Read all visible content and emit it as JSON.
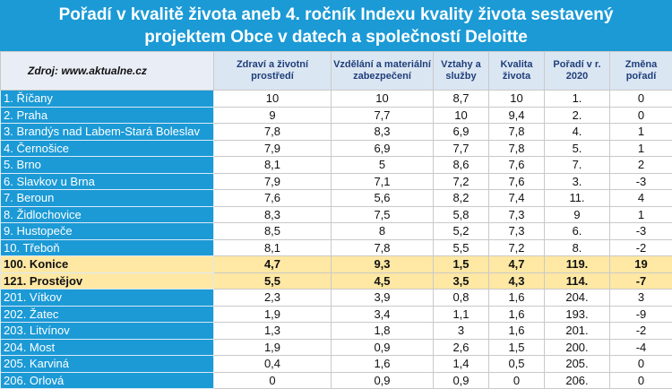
{
  "title": {
    "line1": "Pořadí v kvalitě života aneb 4. ročník Indexu kvality života sestavený",
    "line2": "projektem Obce v datech a společností Deloitte"
  },
  "source": "Zdroj: www.aktualne.cz",
  "columns": [
    "Zdraví a životní prostředí",
    "Vzdělání a materiální zabezpečení",
    "Vztahy a služby",
    "Kvalita života",
    "Pořadí v r. 2020",
    "Změna pořadí"
  ],
  "colors": {
    "header_bg": "#1b9ad6",
    "name_bg": "#1b9ad6",
    "highlight_bg": "#ffe8a3",
    "colheader_bg": "#dbe6f3"
  },
  "rows": [
    {
      "name": "1. Říčany",
      "v": [
        "10",
        "10",
        "8,7",
        "10",
        "1.",
        "0"
      ],
      "hl": false
    },
    {
      "name": "2. Praha",
      "v": [
        "9",
        "7,7",
        "10",
        "9,4",
        "2.",
        "0"
      ],
      "hl": false
    },
    {
      "name": "3. Brandýs nad Labem-Stará Boleslav",
      "v": [
        "7,8",
        "8,3",
        "6,9",
        "7,8",
        "4.",
        "1"
      ],
      "hl": false
    },
    {
      "name": "4. Černošice",
      "v": [
        "7,9",
        "6,9",
        "7,7",
        "7,8",
        "5.",
        "1"
      ],
      "hl": false
    },
    {
      "name": "5. Brno",
      "v": [
        "8,1",
        "5",
        "8,6",
        "7,6",
        "7.",
        "2"
      ],
      "hl": false
    },
    {
      "name": "6. Slavkov u Brna",
      "v": [
        "7,9",
        "7,1",
        "7,2",
        "7,6",
        "3.",
        "-3"
      ],
      "hl": false
    },
    {
      "name": "7. Beroun",
      "v": [
        "7,6",
        "5,6",
        "8,2",
        "7,4",
        "11.",
        "4"
      ],
      "hl": false
    },
    {
      "name": "8. Židlochovice",
      "v": [
        "8,3",
        "7,5",
        "5,8",
        "7,3",
        "9",
        "1"
      ],
      "hl": false
    },
    {
      "name": "9. Hustopeče",
      "v": [
        "8,5",
        "8",
        "5,2",
        "7,3",
        "6.",
        "-3"
      ],
      "hl": false
    },
    {
      "name": "10. Třeboň",
      "v": [
        "8,1",
        "7,8",
        "5,5",
        "7,2",
        "8.",
        "-2"
      ],
      "hl": false
    },
    {
      "name": "100. Konice",
      "v": [
        "4,7",
        "9,3",
        "1,5",
        "4,7",
        "119.",
        "19"
      ],
      "hl": true
    },
    {
      "name": "121. Prostějov",
      "v": [
        "5,5",
        "4,5",
        "3,5",
        "4,3",
        "114.",
        "-7"
      ],
      "hl": true
    },
    {
      "name": "201. Vítkov",
      "v": [
        "2,3",
        "3,9",
        "0,8",
        "1,6",
        "204.",
        "3"
      ],
      "hl": false
    },
    {
      "name": "202. Žatec",
      "v": [
        "1,9",
        "3,4",
        "1,1",
        "1,6",
        "193.",
        "-9"
      ],
      "hl": false
    },
    {
      "name": "203. Litvínov",
      "v": [
        "1,3",
        "1,8",
        "3",
        "1,6",
        "201.",
        "-2"
      ],
      "hl": false
    },
    {
      "name": "204. Most",
      "v": [
        "1,9",
        "0,9",
        "2,6",
        "1,5",
        "200.",
        "-4"
      ],
      "hl": false
    },
    {
      "name": "205. Karviná",
      "v": [
        "0,4",
        "1,6",
        "1,4",
        "0,5",
        "205.",
        "0"
      ],
      "hl": false
    },
    {
      "name": "206. Orlová",
      "v": [
        "0",
        "0,9",
        "0,9",
        "0",
        "206.",
        "0"
      ],
      "hl": false
    }
  ]
}
